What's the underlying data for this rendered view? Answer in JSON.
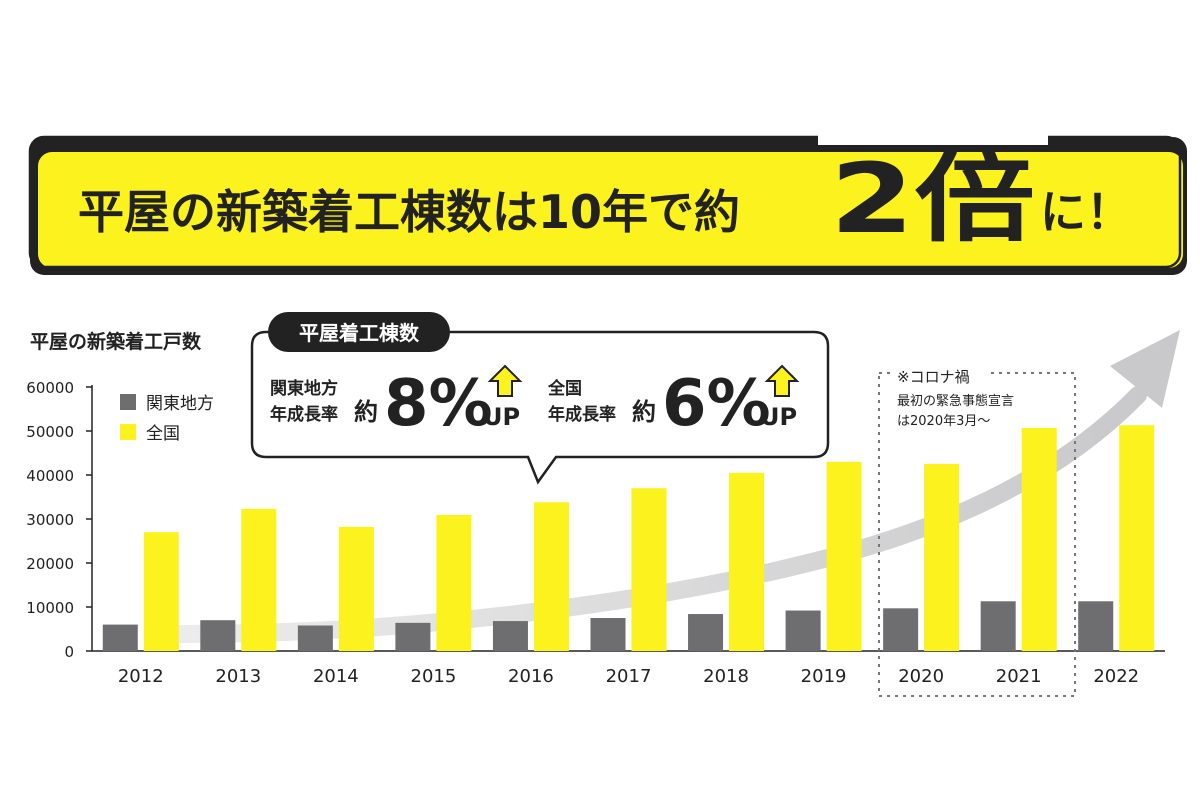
{
  "headline": {
    "part1": "平屋の新築着工棟数は10年で約",
    "big": "2倍",
    "suffix": "に！"
  },
  "chart_title": "平屋の新築着工戸数",
  "callout": {
    "title": "平屋着工棟数",
    "kanto_label_line1": "関東地方",
    "kanto_label_line2": "年成長率",
    "kanto_prefix": "約",
    "kanto_value": "8%",
    "kanto_up": "UP",
    "national_label_line1": "全国",
    "national_label_line2": "年成長率",
    "national_prefix": "約",
    "national_value": "6%",
    "national_up": "UP"
  },
  "corona_note": {
    "line1": "※コロナ禍",
    "line2": "最初の緊急事態宣言",
    "line3": "は2020年3月〜"
  },
  "colors": {
    "national": "#FBF21E",
    "kanto": "#6E6E70",
    "arrow": "#D0D0D2",
    "text": "#222222"
  },
  "chart_data": {
    "type": "bar",
    "title": "平屋の新築着工戸数",
    "xlabel": "",
    "ylabel": "",
    "categories": [
      "2012",
      "2013",
      "2014",
      "2015",
      "2016",
      "2017",
      "2018",
      "2019",
      "2020",
      "2021",
      "2022"
    ],
    "series": [
      {
        "name": "関東地方",
        "color": "#6E6E70",
        "values": [
          6000,
          7000,
          5800,
          6400,
          6800,
          7500,
          8400,
          9200,
          9700,
          11300,
          11300
        ]
      },
      {
        "name": "全国",
        "color": "#FBF21E",
        "values": [
          27000,
          32300,
          28200,
          30900,
          33800,
          37000,
          40500,
          43000,
          42500,
          50700,
          51300
        ]
      }
    ],
    "ylim": [
      0,
      60000
    ],
    "yticks": [
      0,
      10000,
      20000,
      30000,
      40000,
      50000,
      60000
    ],
    "legend": "top-left",
    "grid": false
  }
}
